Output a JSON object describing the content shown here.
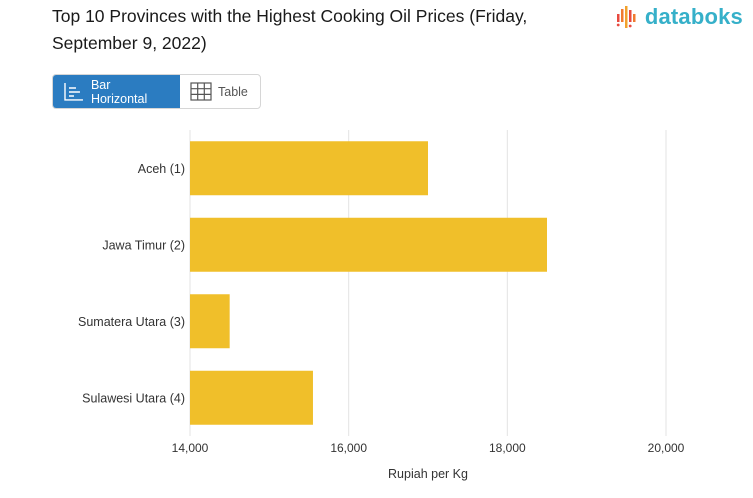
{
  "header": {
    "title": "Top 10 Provinces with the Highest Cooking Oil Prices (Friday, September 9, 2022)",
    "logo_text": "databoks"
  },
  "toggle": {
    "bar_label": "Bar Horizontal",
    "table_label": "Table"
  },
  "colors": {
    "bar": "#f0bf2a",
    "accent": "#2b7cc1",
    "logo": "#36b0c9"
  },
  "chart_data": {
    "type": "bar",
    "orientation": "horizontal",
    "categories": [
      "Aceh (1)",
      "Jawa Timur (2)",
      "Sumatera Utara (3)",
      "Sulawesi Utara (4)"
    ],
    "values": [
      17000,
      18500,
      14500,
      15550
    ],
    "xlabel": "Rupiah per Kg",
    "ylabel": "",
    "xlim": [
      14000,
      20000
    ],
    "xticks": [
      14000,
      16000,
      18000,
      20000
    ],
    "xtick_labels": [
      "14,000",
      "16,000",
      "18,000",
      "20,000"
    ],
    "grid": true
  }
}
